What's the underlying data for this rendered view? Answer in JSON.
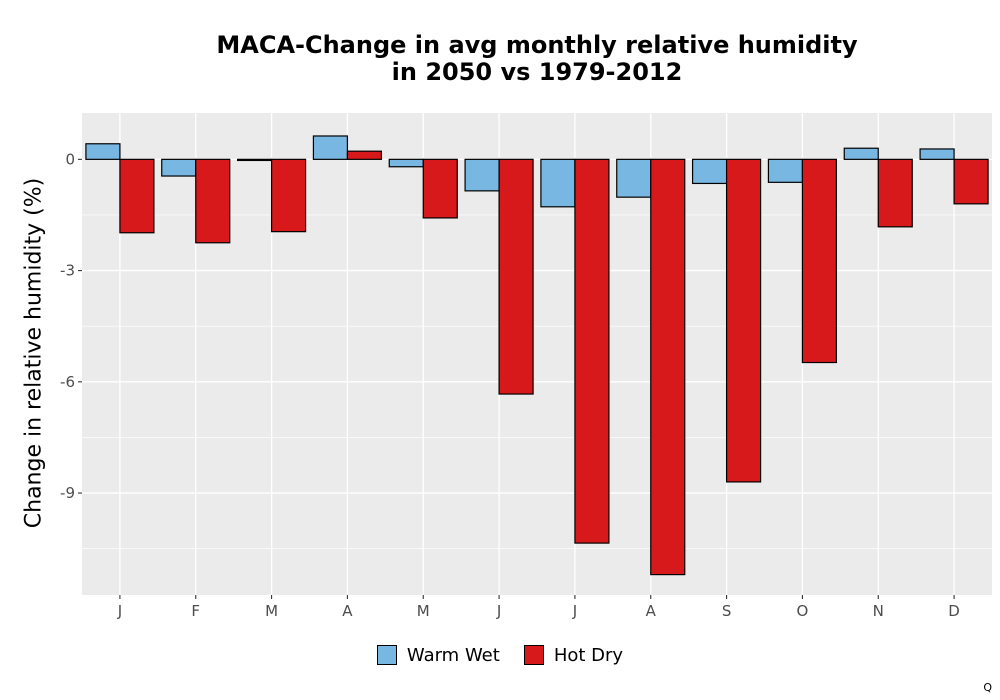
{
  "chart_data": {
    "type": "bar",
    "title_line1": "MACA-Change in avg monthly relative humidity",
    "title_line2": "in 2050 vs 1979-2012",
    "xlabel": "",
    "ylabel": "Change in relative humidity (%)",
    "categories": [
      "J",
      "F",
      "M",
      "A",
      "M",
      "J",
      "J",
      "A",
      "S",
      "O",
      "N",
      "D"
    ],
    "series": [
      {
        "name": "Warm Wet",
        "color": "#78b7e2",
        "values": [
          0.42,
          -0.45,
          -0.03,
          0.63,
          -0.2,
          -0.85,
          -1.28,
          -1.02,
          -0.65,
          -0.62,
          0.3,
          0.28
        ]
      },
      {
        "name": "Hot Dry",
        "color": "#d7191c",
        "values": [
          -1.98,
          -2.25,
          -1.95,
          0.22,
          -1.58,
          -6.33,
          -10.35,
          -11.2,
          -8.7,
          -5.48,
          -1.82,
          -1.2
        ]
      }
    ],
    "yticks": [
      0,
      -3,
      -6,
      -9
    ],
    "ylim": [
      -11.75,
      1.25
    ],
    "grid": true,
    "legend_position": "bottom"
  },
  "corner_mark": "Q"
}
